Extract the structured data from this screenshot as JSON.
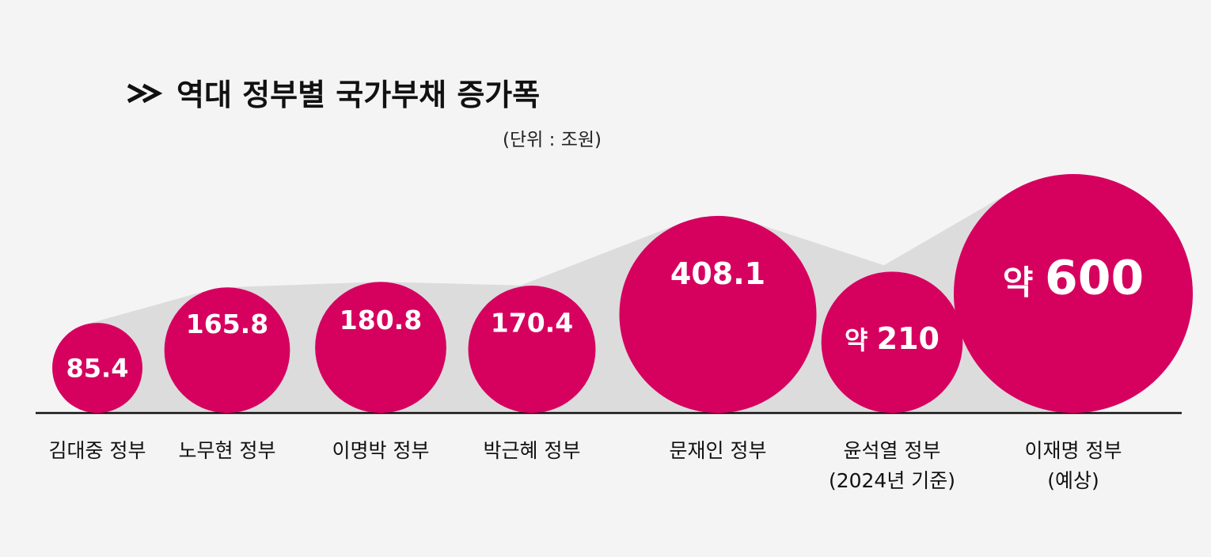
{
  "chart_data": {
    "type": "bubble",
    "title": "역대 정부별 국가부채 증가폭",
    "title_marker": ">>",
    "unit": "(단위 : 조원)",
    "colors": {
      "bubble": "#d6005f",
      "connector": "#dcdcdc",
      "baseline": "#111111",
      "background": "#f4f4f4"
    },
    "items": [
      {
        "label": [
          "김대중 정부"
        ],
        "value": 85.4,
        "display": "85.4",
        "prefix": ""
      },
      {
        "label": [
          "노무현 정부"
        ],
        "value": 165.8,
        "display": "165.8",
        "prefix": ""
      },
      {
        "label": [
          "이명박 정부"
        ],
        "value": 180.8,
        "display": "180.8",
        "prefix": ""
      },
      {
        "label": [
          "박근혜 정부"
        ],
        "value": 170.4,
        "display": "170.4",
        "prefix": ""
      },
      {
        "label": [
          "문재인 정부"
        ],
        "value": 408.1,
        "display": "408.1",
        "prefix": ""
      },
      {
        "label": [
          "윤석열 정부",
          "(2024년 기준)"
        ],
        "value": 210,
        "display": "210",
        "prefix": "약"
      },
      {
        "label": [
          "이재명 정부",
          "(예상)"
        ],
        "value": 600,
        "display": "600",
        "prefix": "약"
      }
    ]
  }
}
